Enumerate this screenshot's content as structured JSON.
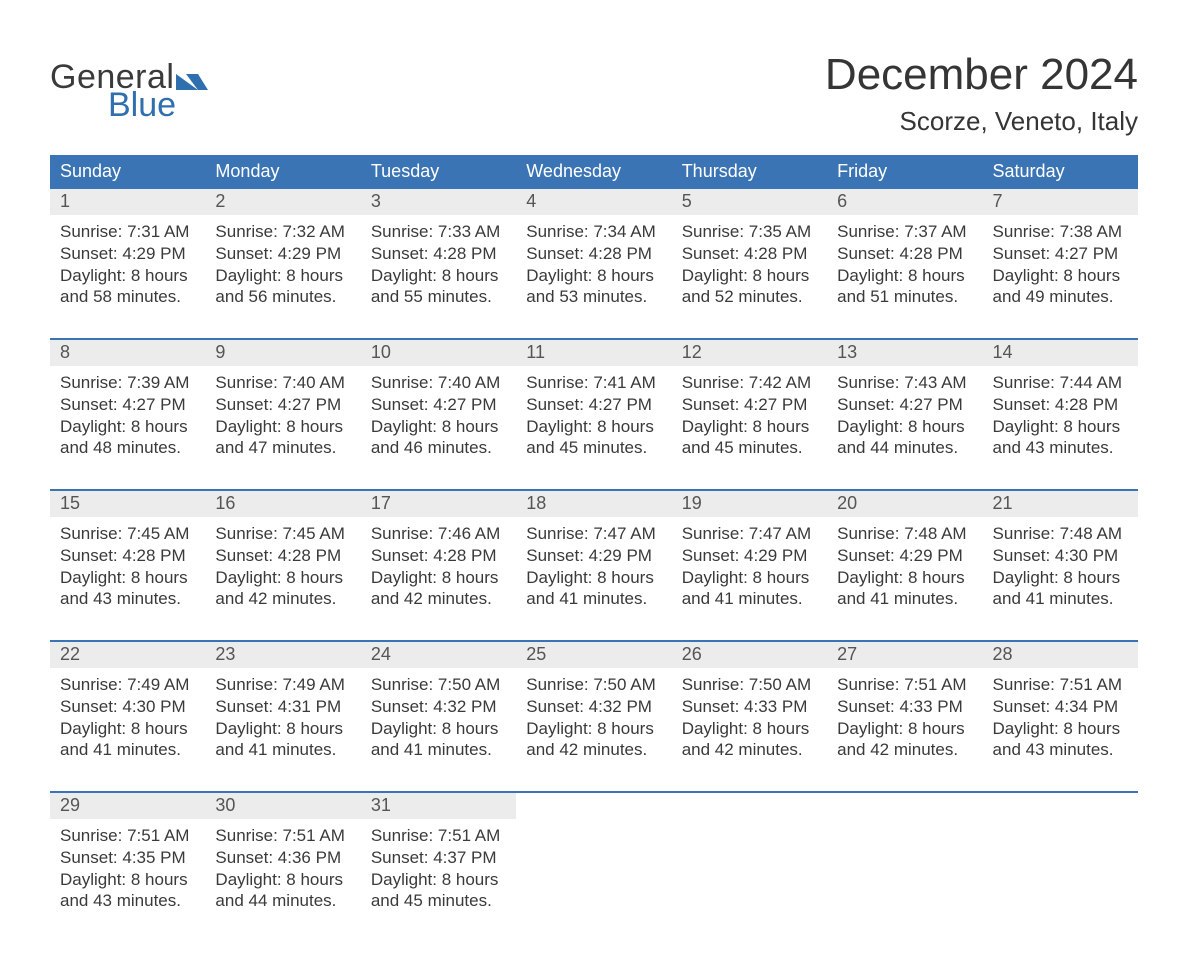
{
  "brand": {
    "line1": "General",
    "line2": "Blue",
    "icon_color": "#2f6fae"
  },
  "header": {
    "title": "December 2024",
    "location": "Scorze, Veneto, Italy"
  },
  "colors": {
    "header_bg": "#3b74b4",
    "header_text": "#ffffff",
    "daynum_bg": "#ececec",
    "daynum_text": "#555555",
    "body_text": "#3a3a3a",
    "week_divider": "#3b74b4",
    "page_bg": "#ffffff",
    "logo_blue": "#2f6fae"
  },
  "typography": {
    "title_fontsize": 44,
    "location_fontsize": 26,
    "dow_fontsize": 18,
    "daynum_fontsize": 18,
    "body_fontsize": 17,
    "font_family": "Arial"
  },
  "days_of_week": [
    "Sunday",
    "Monday",
    "Tuesday",
    "Wednesday",
    "Thursday",
    "Friday",
    "Saturday"
  ],
  "weeks": [
    [
      {
        "n": "1",
        "sr": "Sunrise: 7:31 AM",
        "ss": "Sunset: 4:29 PM",
        "d1": "Daylight: 8 hours",
        "d2": "and 58 minutes."
      },
      {
        "n": "2",
        "sr": "Sunrise: 7:32 AM",
        "ss": "Sunset: 4:29 PM",
        "d1": "Daylight: 8 hours",
        "d2": "and 56 minutes."
      },
      {
        "n": "3",
        "sr": "Sunrise: 7:33 AM",
        "ss": "Sunset: 4:28 PM",
        "d1": "Daylight: 8 hours",
        "d2": "and 55 minutes."
      },
      {
        "n": "4",
        "sr": "Sunrise: 7:34 AM",
        "ss": "Sunset: 4:28 PM",
        "d1": "Daylight: 8 hours",
        "d2": "and 53 minutes."
      },
      {
        "n": "5",
        "sr": "Sunrise: 7:35 AM",
        "ss": "Sunset: 4:28 PM",
        "d1": "Daylight: 8 hours",
        "d2": "and 52 minutes."
      },
      {
        "n": "6",
        "sr": "Sunrise: 7:37 AM",
        "ss": "Sunset: 4:28 PM",
        "d1": "Daylight: 8 hours",
        "d2": "and 51 minutes."
      },
      {
        "n": "7",
        "sr": "Sunrise: 7:38 AM",
        "ss": "Sunset: 4:27 PM",
        "d1": "Daylight: 8 hours",
        "d2": "and 49 minutes."
      }
    ],
    [
      {
        "n": "8",
        "sr": "Sunrise: 7:39 AM",
        "ss": "Sunset: 4:27 PM",
        "d1": "Daylight: 8 hours",
        "d2": "and 48 minutes."
      },
      {
        "n": "9",
        "sr": "Sunrise: 7:40 AM",
        "ss": "Sunset: 4:27 PM",
        "d1": "Daylight: 8 hours",
        "d2": "and 47 minutes."
      },
      {
        "n": "10",
        "sr": "Sunrise: 7:40 AM",
        "ss": "Sunset: 4:27 PM",
        "d1": "Daylight: 8 hours",
        "d2": "and 46 minutes."
      },
      {
        "n": "11",
        "sr": "Sunrise: 7:41 AM",
        "ss": "Sunset: 4:27 PM",
        "d1": "Daylight: 8 hours",
        "d2": "and 45 minutes."
      },
      {
        "n": "12",
        "sr": "Sunrise: 7:42 AM",
        "ss": "Sunset: 4:27 PM",
        "d1": "Daylight: 8 hours",
        "d2": "and 45 minutes."
      },
      {
        "n": "13",
        "sr": "Sunrise: 7:43 AM",
        "ss": "Sunset: 4:27 PM",
        "d1": "Daylight: 8 hours",
        "d2": "and 44 minutes."
      },
      {
        "n": "14",
        "sr": "Sunrise: 7:44 AM",
        "ss": "Sunset: 4:28 PM",
        "d1": "Daylight: 8 hours",
        "d2": "and 43 minutes."
      }
    ],
    [
      {
        "n": "15",
        "sr": "Sunrise: 7:45 AM",
        "ss": "Sunset: 4:28 PM",
        "d1": "Daylight: 8 hours",
        "d2": "and 43 minutes."
      },
      {
        "n": "16",
        "sr": "Sunrise: 7:45 AM",
        "ss": "Sunset: 4:28 PM",
        "d1": "Daylight: 8 hours",
        "d2": "and 42 minutes."
      },
      {
        "n": "17",
        "sr": "Sunrise: 7:46 AM",
        "ss": "Sunset: 4:28 PM",
        "d1": "Daylight: 8 hours",
        "d2": "and 42 minutes."
      },
      {
        "n": "18",
        "sr": "Sunrise: 7:47 AM",
        "ss": "Sunset: 4:29 PM",
        "d1": "Daylight: 8 hours",
        "d2": "and 41 minutes."
      },
      {
        "n": "19",
        "sr": "Sunrise: 7:47 AM",
        "ss": "Sunset: 4:29 PM",
        "d1": "Daylight: 8 hours",
        "d2": "and 41 minutes."
      },
      {
        "n": "20",
        "sr": "Sunrise: 7:48 AM",
        "ss": "Sunset: 4:29 PM",
        "d1": "Daylight: 8 hours",
        "d2": "and 41 minutes."
      },
      {
        "n": "21",
        "sr": "Sunrise: 7:48 AM",
        "ss": "Sunset: 4:30 PM",
        "d1": "Daylight: 8 hours",
        "d2": "and 41 minutes."
      }
    ],
    [
      {
        "n": "22",
        "sr": "Sunrise: 7:49 AM",
        "ss": "Sunset: 4:30 PM",
        "d1": "Daylight: 8 hours",
        "d2": "and 41 minutes."
      },
      {
        "n": "23",
        "sr": "Sunrise: 7:49 AM",
        "ss": "Sunset: 4:31 PM",
        "d1": "Daylight: 8 hours",
        "d2": "and 41 minutes."
      },
      {
        "n": "24",
        "sr": "Sunrise: 7:50 AM",
        "ss": "Sunset: 4:32 PM",
        "d1": "Daylight: 8 hours",
        "d2": "and 41 minutes."
      },
      {
        "n": "25",
        "sr": "Sunrise: 7:50 AM",
        "ss": "Sunset: 4:32 PM",
        "d1": "Daylight: 8 hours",
        "d2": "and 42 minutes."
      },
      {
        "n": "26",
        "sr": "Sunrise: 7:50 AM",
        "ss": "Sunset: 4:33 PM",
        "d1": "Daylight: 8 hours",
        "d2": "and 42 minutes."
      },
      {
        "n": "27",
        "sr": "Sunrise: 7:51 AM",
        "ss": "Sunset: 4:33 PM",
        "d1": "Daylight: 8 hours",
        "d2": "and 42 minutes."
      },
      {
        "n": "28",
        "sr": "Sunrise: 7:51 AM",
        "ss": "Sunset: 4:34 PM",
        "d1": "Daylight: 8 hours",
        "d2": "and 43 minutes."
      }
    ],
    [
      {
        "n": "29",
        "sr": "Sunrise: 7:51 AM",
        "ss": "Sunset: 4:35 PM",
        "d1": "Daylight: 8 hours",
        "d2": "and 43 minutes."
      },
      {
        "n": "30",
        "sr": "Sunrise: 7:51 AM",
        "ss": "Sunset: 4:36 PM",
        "d1": "Daylight: 8 hours",
        "d2": "and 44 minutes."
      },
      {
        "n": "31",
        "sr": "Sunrise: 7:51 AM",
        "ss": "Sunset: 4:37 PM",
        "d1": "Daylight: 8 hours",
        "d2": "and 45 minutes."
      },
      {
        "empty": true
      },
      {
        "empty": true
      },
      {
        "empty": true
      },
      {
        "empty": true
      }
    ]
  ]
}
